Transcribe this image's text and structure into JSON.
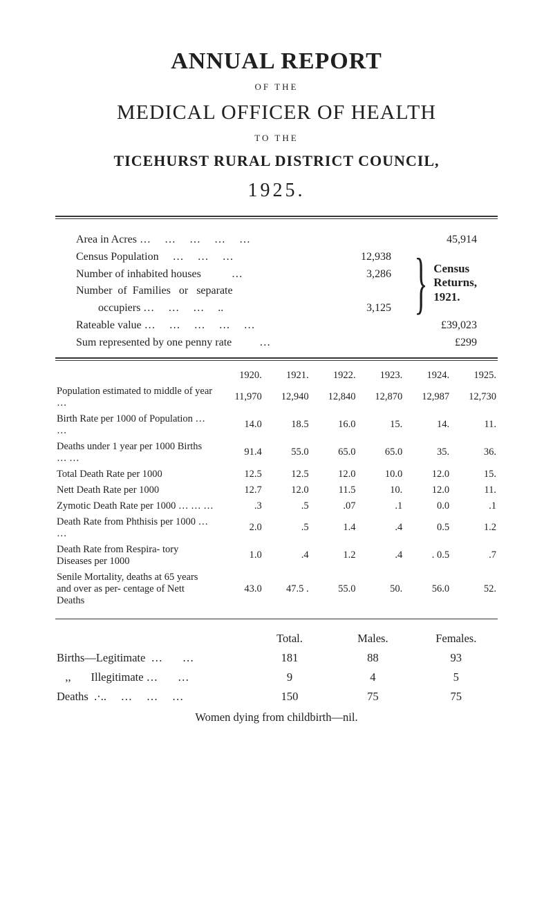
{
  "titles": {
    "annual_report": "ANNUAL REPORT",
    "of_the": "OF THE",
    "medical_officer": "MEDICAL OFFICER OF HEALTH",
    "to_the": "TO THE",
    "council": "TICEHURST RURAL DISTRICT COUNCIL,",
    "year": "1925."
  },
  "summary": {
    "area_label": "Area in Acres …     …     …     …     …",
    "area_value": "45,914",
    "census_pop_label": "Census Population     …     …     …",
    "census_pop_value": "12,938",
    "inhabited_label": "Number of inhabited houses           …",
    "inhabited_value": "3,286",
    "families_label1": "Number  of  Families   or   separate",
    "families_label2": "        occupiers …     …     …     ..",
    "families_value": "3,125",
    "brace_text": "Census\nReturns,\n1921.",
    "rateable_label": "Rateable value …     …     …     …     …",
    "rateable_value": "£39,023",
    "sum_label": "Sum represented by one penny rate          …",
    "sum_value": "£299"
  },
  "stats": {
    "years": [
      "1920.",
      "1921.",
      "1922.",
      "1923.",
      "1924.",
      "1925."
    ],
    "rows": [
      {
        "label": "Population estimated to middle of year        …",
        "vals": [
          "11,970",
          "12,940",
          "12,840",
          "12,870",
          "12,987",
          "12,730"
        ]
      },
      {
        "label": "Birth Rate per 1000 of Population      …     …",
        "vals": [
          "14.0",
          "18.5",
          "16.0",
          "15.",
          "14.",
          "11."
        ]
      },
      {
        "label": "Deaths under 1 year per 1000 Births    …    …",
        "vals": [
          "91.4",
          "55.0",
          "65.0",
          "65.0",
          "35.",
          "36."
        ]
      },
      {
        "label": "Total Death Rate per 1000",
        "vals": [
          "12.5",
          "12.5",
          "12.0",
          "10.0",
          "12.0",
          "15."
        ]
      },
      {
        "label": "Nett Death Rate per 1000",
        "vals": [
          "12.7",
          "12.0",
          "11.5",
          "10.",
          "12.0",
          "11."
        ]
      },
      {
        "label": "Zymotic Death Rate per 1000    …    …    …",
        "vals": [
          ".3",
          ".5",
          ".07",
          ".1",
          "0.0",
          ".1"
        ]
      },
      {
        "label": "Death Rate from Phthisis per 1000        …    …",
        "vals": [
          "2.0",
          ".5",
          "1.4",
          ".4",
          "0.5",
          "1.2"
        ]
      },
      {
        "label": "Death Rate from Respira- tory Diseases per 1000",
        "vals": [
          "1.0",
          ".4",
          "1.2",
          ".4",
          ". 0.5",
          ".7"
        ]
      },
      {
        "label": "Senile Mortality, deaths at 65 years and over as per- centage of Nett Deaths",
        "vals": [
          "43.0",
          "47.5 .",
          "55.0",
          "50.",
          "56.0",
          "52."
        ]
      }
    ]
  },
  "lower": {
    "headers": {
      "total": "Total.",
      "males": "Males.",
      "females": "Females."
    },
    "rows": [
      {
        "label": "Births—Legitimate  …       …",
        "total": "181",
        "males": "88",
        "females": "93"
      },
      {
        "label": "   ,,       Illegitimate …       …",
        "total": "9",
        "males": "4",
        "females": "5"
      },
      {
        "label": "Deaths  .·..     …     …     …",
        "total": "150",
        "males": "75",
        "females": "75"
      }
    ],
    "footer": "Women dying from childbirth—nil."
  },
  "colors": {
    "text": "#1f1f1f",
    "rule": "#333333",
    "background": "#ffffff"
  },
  "fonts": {
    "title_size_pt": 26,
    "body_size_pt": 12,
    "stats_size_pt": 11
  }
}
